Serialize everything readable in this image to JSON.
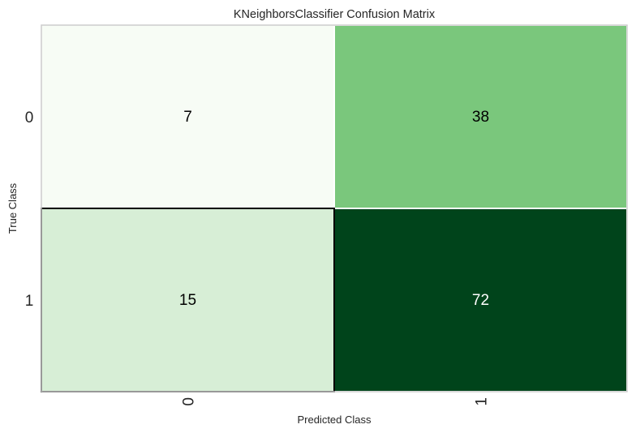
{
  "chart_data": {
    "type": "heatmap",
    "title": "KNeighborsClassifier Confusion Matrix",
    "xlabel": "Predicted Class",
    "ylabel": "True Class",
    "x_categories": [
      "0",
      "1"
    ],
    "y_categories": [
      "0",
      "1"
    ],
    "matrix": [
      [
        7,
        38
      ],
      [
        15,
        72
      ]
    ],
    "colormap": "Greens",
    "grid": false,
    "colors": {
      "low": "#f7fcf5",
      "mid": "#74c476",
      "high": "#00441b",
      "cell_border": "#ffffff",
      "text_dark": "#000000",
      "text_light": "#ffffff"
    }
  }
}
